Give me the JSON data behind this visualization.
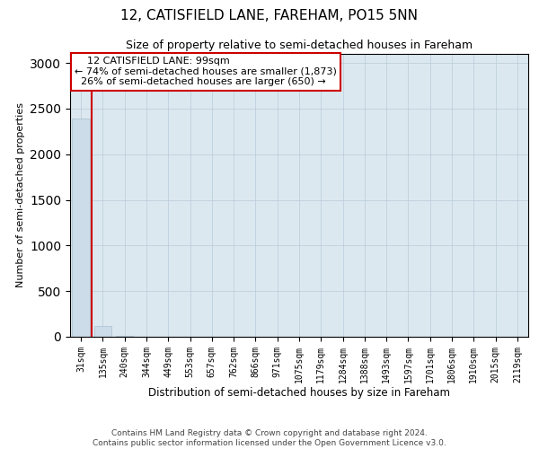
{
  "title": "12, CATISFIELD LANE, FAREHAM, PO15 5NN",
  "subtitle": "Size of property relative to semi-detached houses in Fareham",
  "xlabel": "Distribution of semi-detached houses by size in Fareham",
  "ylabel": "Number of semi-detached properties",
  "footer_line1": "Contains HM Land Registry data © Crown copyright and database right 2024.",
  "footer_line2": "Contains public sector information licensed under the Open Government Licence v3.0.",
  "annotation_title": "12 CATISFIELD LANE: 99sqm",
  "annotation_line2": "← 74% of semi-detached houses are smaller (1,873)",
  "annotation_line3": "26% of semi-detached houses are larger (650) →",
  "bar_color": "#ccdce8",
  "bar_edge_color": "#a8c0d0",
  "line_color": "#cc0000",
  "categories": [
    "31sqm",
    "135sqm",
    "240sqm",
    "344sqm",
    "449sqm",
    "553sqm",
    "657sqm",
    "762sqm",
    "866sqm",
    "971sqm",
    "1075sqm",
    "1179sqm",
    "1284sqm",
    "1388sqm",
    "1493sqm",
    "1597sqm",
    "1701sqm",
    "1806sqm",
    "1910sqm",
    "2015sqm",
    "2119sqm"
  ],
  "values": [
    2390,
    120,
    8,
    4,
    2,
    1,
    1,
    1,
    0,
    0,
    0,
    0,
    0,
    0,
    0,
    0,
    0,
    0,
    0,
    0,
    0
  ],
  "ylim": [
    0,
    3100
  ],
  "yticks": [
    0,
    500,
    1000,
    1500,
    2000,
    2500,
    3000
  ],
  "red_line_x": 0.5,
  "background_color": "#ffffff",
  "plot_bg_color": "#dce8f0",
  "grid_color": "#b8ccd8"
}
